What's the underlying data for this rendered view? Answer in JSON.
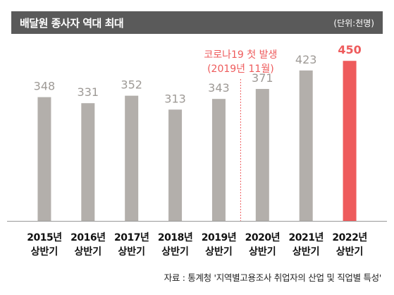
{
  "header": {
    "title": "배달원 종사자 역대 최대",
    "unit": "(단위:천명)"
  },
  "annotation": {
    "line1": "코로나19 첫 발생",
    "line2": "(2019년 11월)"
  },
  "source": "자료 : 통계청 '지역별고용조사 취업자의 산업 및 직업별 특성'",
  "colors": {
    "bar": "#b3afab",
    "highlight": "#ee5b5c",
    "value_text": "#9e9a96",
    "axis": "#999999",
    "annotation": "#ee5b5c",
    "title_bar": "#5a5a5a"
  },
  "chart_data": {
    "type": "bar",
    "categories": [
      [
        "2015년",
        "상반기"
      ],
      [
        "2016년",
        "상반기"
      ],
      [
        "2017년",
        "상반기"
      ],
      [
        "2018년",
        "상반기"
      ],
      [
        "2019년",
        "상반기"
      ],
      [
        "2020년",
        "상반기"
      ],
      [
        "2021년",
        "상반기"
      ],
      [
        "2022년",
        "상반기"
      ]
    ],
    "values": [
      348,
      331,
      352,
      313,
      343,
      371,
      423,
      450
    ],
    "value_labels": [
      "348",
      "331",
      "352",
      "313",
      "343",
      "371",
      "423",
      "450"
    ],
    "highlight_index": 7,
    "ylim": [
      0,
      510
    ],
    "marker_between": [
      4,
      5
    ],
    "grid": false
  }
}
